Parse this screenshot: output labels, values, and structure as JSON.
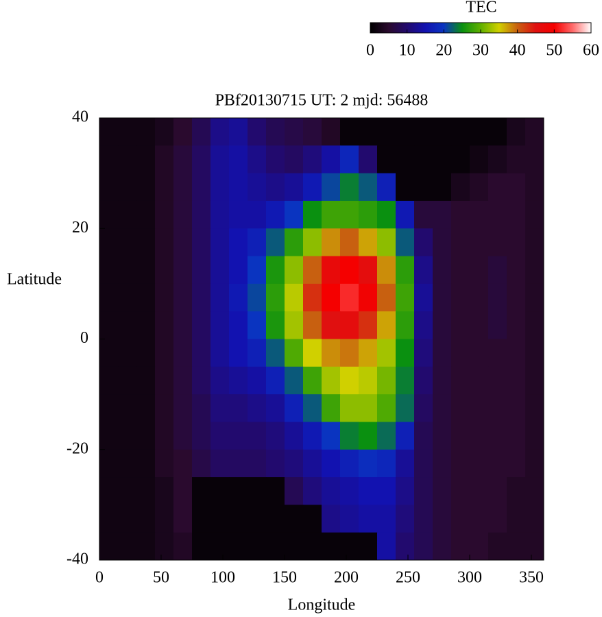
{
  "chart_data": {
    "type": "heatmap",
    "title": "PBf20130715  UT: 2  mjd: 56488",
    "x_label": "Longitude",
    "y_label": "Latitude",
    "colorbar_label": "TEC",
    "x": [
      7.5,
      22.5,
      37.5,
      52.5,
      67.5,
      82.5,
      97.5,
      112.5,
      127.5,
      142.5,
      157.5,
      172.5,
      187.5,
      202.5,
      217.5,
      232.5,
      247.5,
      262.5,
      277.5,
      292.5,
      307.5,
      322.5,
      337.5,
      352.5
    ],
    "y": [
      37.5,
      32.5,
      27.5,
      22.5,
      17.5,
      12.5,
      7.5,
      2.5,
      -2.5,
      -7.5,
      -12.5,
      -17.5,
      -22.5,
      -27.5,
      -32.5,
      -37.5
    ],
    "z": [
      [
        2,
        2,
        2,
        3,
        5,
        8,
        12,
        13,
        10,
        8,
        7,
        6,
        4,
        1,
        1,
        1,
        1,
        1,
        1,
        1,
        1,
        1,
        3,
        4
      ],
      [
        2,
        2,
        2,
        4,
        6,
        9,
        13,
        14,
        12,
        10,
        9,
        11,
        14,
        18,
        10,
        1,
        1,
        1,
        1,
        1,
        2,
        3,
        4,
        4
      ],
      [
        2,
        2,
        2,
        4,
        6,
        9,
        13,
        14,
        13,
        12,
        13,
        16,
        21,
        24,
        22,
        17,
        1,
        1,
        1,
        3,
        4,
        5,
        5,
        4
      ],
      [
        2,
        2,
        2,
        4,
        6,
        9,
        13,
        14,
        14,
        16,
        20,
        25,
        28,
        28,
        27,
        25,
        16,
        6,
        6,
        5,
        5,
        5,
        5,
        4
      ],
      [
        2,
        2,
        2,
        4,
        6,
        9,
        13,
        15,
        17,
        22,
        27,
        32,
        38,
        40,
        37,
        32,
        22,
        10,
        6,
        5,
        5,
        5,
        5,
        4
      ],
      [
        2,
        2,
        2,
        4,
        6,
        9,
        13,
        15,
        20,
        26,
        32,
        40,
        47,
        50,
        46,
        38,
        27,
        12,
        6,
        5,
        5,
        6,
        5,
        4
      ],
      [
        2,
        2,
        2,
        4,
        6,
        9,
        13,
        16,
        21,
        27,
        34,
        43,
        50,
        52,
        49,
        40,
        28,
        13,
        6,
        5,
        5,
        6,
        5,
        4
      ],
      [
        2,
        2,
        2,
        4,
        6,
        9,
        13,
        15,
        20,
        26,
        33,
        40,
        45,
        46,
        43,
        37,
        27,
        12,
        6,
        5,
        5,
        6,
        5,
        4
      ],
      [
        2,
        2,
        2,
        4,
        6,
        9,
        13,
        15,
        17,
        22,
        29,
        35,
        38,
        39,
        37,
        33,
        25,
        11,
        6,
        5,
        5,
        5,
        5,
        4
      ],
      [
        2,
        2,
        2,
        4,
        6,
        9,
        12,
        13,
        14,
        17,
        22,
        28,
        33,
        35,
        34,
        31,
        24,
        10,
        6,
        5,
        5,
        5,
        5,
        4
      ],
      [
        2,
        2,
        2,
        4,
        6,
        8,
        11,
        11,
        12,
        13,
        17,
        22,
        28,
        32,
        32,
        29,
        23,
        9,
        6,
        5,
        5,
        5,
        5,
        4
      ],
      [
        2,
        2,
        2,
        4,
        6,
        8,
        10,
        10,
        10,
        11,
        13,
        16,
        20,
        24,
        25,
        23,
        17,
        8,
        6,
        5,
        5,
        5,
        5,
        4
      ],
      [
        2,
        2,
        2,
        4,
        5,
        7,
        9,
        9,
        9,
        10,
        11,
        13,
        15,
        17,
        19,
        18,
        13,
        8,
        6,
        5,
        5,
        5,
        5,
        4
      ],
      [
        2,
        2,
        2,
        3,
        5,
        1,
        1,
        1,
        1,
        1,
        8,
        11,
        13,
        14,
        15,
        15,
        12,
        8,
        6,
        5,
        5,
        5,
        4,
        4
      ],
      [
        2,
        2,
        2,
        3,
        5,
        1,
        1,
        1,
        1,
        1,
        1,
        1,
        12,
        13,
        14,
        14,
        11,
        8,
        6,
        5,
        5,
        5,
        4,
        4
      ],
      [
        2,
        2,
        2,
        3,
        4,
        1,
        1,
        1,
        1,
        1,
        1,
        1,
        1,
        1,
        1,
        14,
        10,
        8,
        6,
        5,
        5,
        4,
        4,
        4
      ]
    ],
    "xlim": [
      0,
      360
    ],
    "xticks": [
      0,
      50,
      100,
      150,
      200,
      250,
      300,
      350
    ],
    "ylim": [
      -40,
      40
    ],
    "yticks": [
      -40,
      -20,
      0,
      20,
      40
    ],
    "zlim": [
      0,
      60
    ],
    "zticks": [
      0,
      10,
      20,
      30,
      40,
      50,
      60
    ],
    "colormap": [
      "#000000",
      "#2a0a2e",
      "#220a6e",
      "#1212b0",
      "#0a34c0",
      "#0a9010",
      "#60b000",
      "#d0d000",
      "#c86010",
      "#e01010",
      "#f50000",
      "#ff6a6a",
      "#ffffff"
    ]
  }
}
